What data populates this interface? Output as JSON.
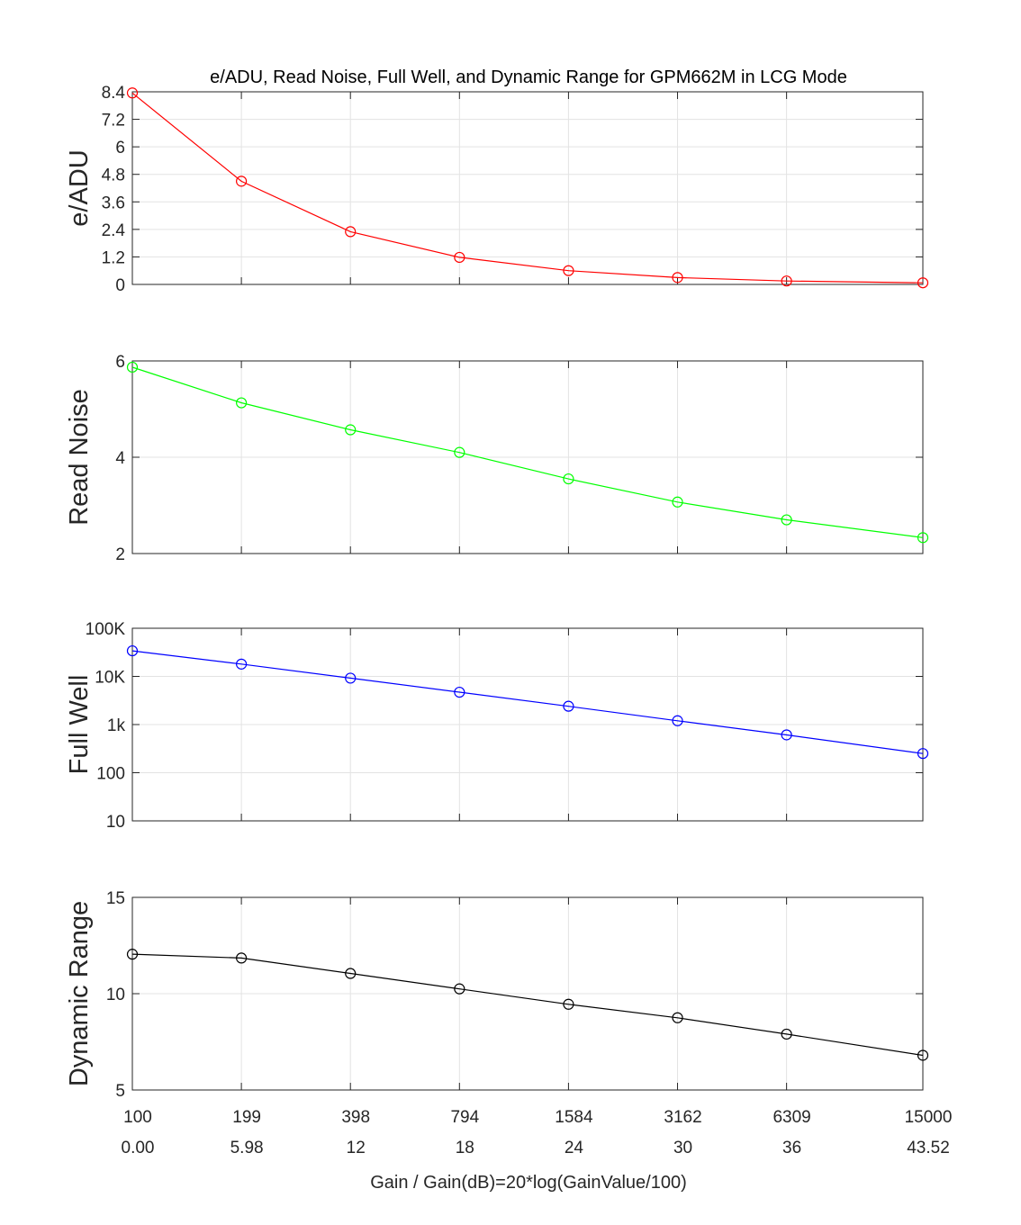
{
  "chart_data": [
    {
      "type": "line",
      "title": "e/ADU, Read Noise, Full Well, and Dynamic Range for GPM662M in LCG Mode",
      "ylabel": "e/ADU",
      "ylim": [
        0,
        8.4
      ],
      "yscale": "linear",
      "yticks": [
        0,
        1.2,
        2.4,
        3.6,
        4.8,
        6,
        7.2,
        8.4
      ],
      "ytick_labels": [
        "0",
        "1.2",
        "2.4",
        "3.6",
        "4.8",
        "6",
        "7.2",
        "8.4"
      ],
      "color": "#ff0000",
      "grid": true,
      "x": [
        0,
        1,
        2,
        3,
        4,
        5,
        6,
        7.25
      ],
      "values": [
        8.35,
        4.5,
        2.3,
        1.18,
        0.6,
        0.3,
        0.15,
        0.07
      ]
    },
    {
      "type": "line",
      "title": "",
      "ylabel": "Read Noise",
      "ylim": [
        2,
        6
      ],
      "yscale": "linear",
      "yticks": [
        2,
        4,
        6
      ],
      "ytick_labels": [
        "2",
        "4",
        "6"
      ],
      "color": "#00ff00",
      "grid": true,
      "x": [
        0,
        1,
        2,
        3,
        4,
        5,
        6,
        7.25
      ],
      "values": [
        5.87,
        5.13,
        4.57,
        4.1,
        3.55,
        3.07,
        2.7,
        2.33
      ]
    },
    {
      "type": "line",
      "title": "",
      "ylabel": "Full Well",
      "ylim": [
        10,
        100000
      ],
      "yscale": "log",
      "yticks": [
        10,
        100,
        1000,
        10000,
        100000
      ],
      "ytick_labels": [
        "10",
        "100",
        "1k",
        "10K",
        "100K"
      ],
      "color": "#0000ff",
      "grid": true,
      "x": [
        0,
        1,
        2,
        3,
        4,
        5,
        6,
        7.25
      ],
      "values": [
        34000,
        18000,
        9200,
        4700,
        2400,
        1200,
        610,
        250
      ]
    },
    {
      "type": "line",
      "title": "",
      "ylabel": "Dynamic Range",
      "ylim": [
        5,
        15
      ],
      "yscale": "linear",
      "yticks": [
        5,
        10,
        15
      ],
      "ytick_labels": [
        "5",
        "10",
        "15"
      ],
      "color": "#000000",
      "grid": true,
      "x": [
        0,
        1,
        2,
        3,
        4,
        5,
        6,
        7.25
      ],
      "values": [
        12.05,
        11.85,
        11.05,
        10.25,
        9.45,
        8.75,
        7.9,
        6.8
      ]
    }
  ],
  "x_axis": {
    "gain_labels": [
      "100",
      "199",
      "398",
      "794",
      "1584",
      "3162",
      "6309",
      "15000"
    ],
    "db_labels": [
      "0.00",
      "5.98",
      "12",
      "18",
      "24",
      "30",
      "36",
      "43.52"
    ],
    "tick_positions": [
      0,
      1,
      2,
      3,
      4,
      5,
      6,
      7.25
    ],
    "xlim": [
      0,
      7.25
    ],
    "xlabel": "Gain / Gain(dB)=20*log(GainValue/100)"
  }
}
